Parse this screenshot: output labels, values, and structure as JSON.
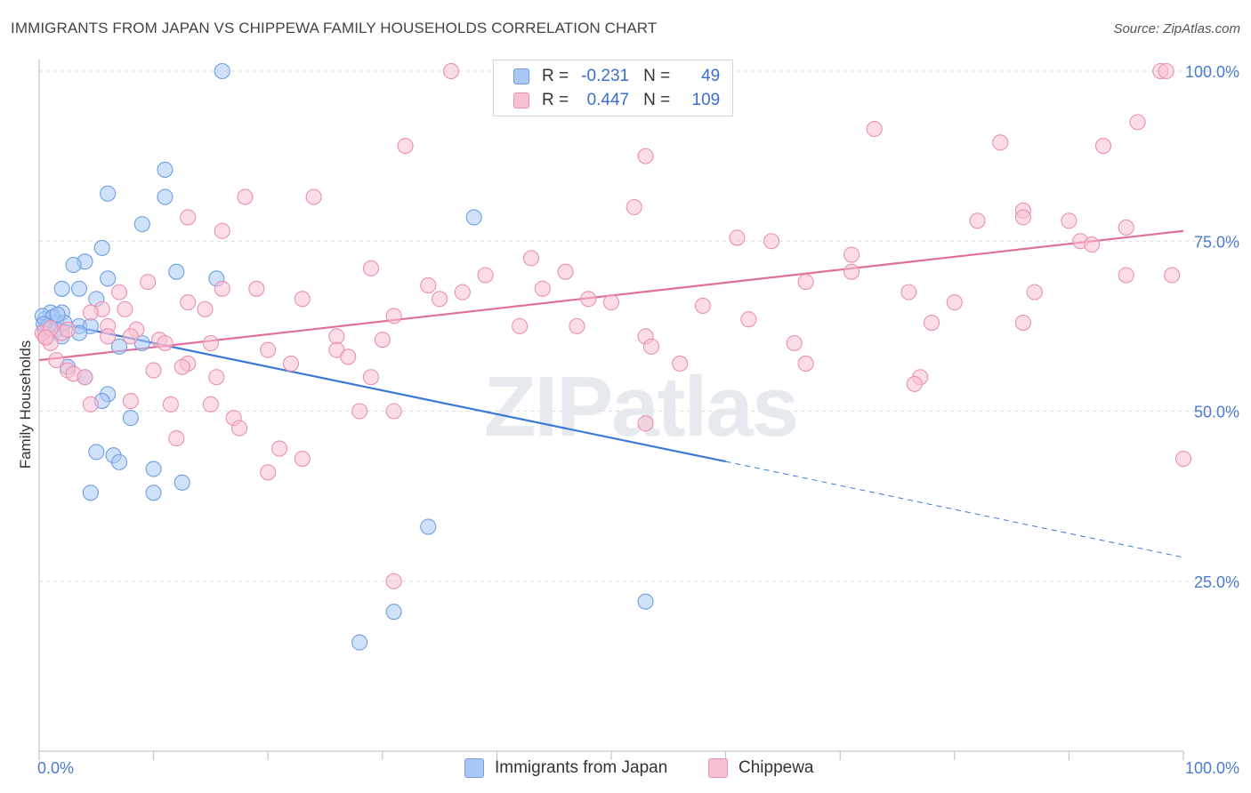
{
  "title": "IMMIGRANTS FROM JAPAN VS CHIPPEWA FAMILY HOUSEHOLDS CORRELATION CHART",
  "source": "Source: ZipAtlas.com",
  "watermark": "ZIPatlas",
  "legend": {
    "rows": [
      {
        "r_label": "R =",
        "r_value": "-0.231",
        "n_label": "N =",
        "n_value": "49",
        "color": "#a9c8f5",
        "border": "#6f9fe0"
      },
      {
        "r_label": "R =",
        "r_value": "0.447",
        "n_label": "N =",
        "n_value": "109",
        "color": "#f9c0d3",
        "border": "#e891ae"
      }
    ]
  },
  "bottom_legend": [
    {
      "label": "Immigrants from Japan",
      "color": "#a9c8f5",
      "border": "#6f9fe0"
    },
    {
      "label": "Chippewa",
      "color": "#f9c0d3",
      "border": "#e891ae"
    }
  ],
  "chart_data": {
    "type": "scatter",
    "title": "IMMIGRANTS FROM JAPAN VS CHIPPEWA FAMILY HOUSEHOLDS CORRELATION CHART",
    "xlabel": "",
    "ylabel": "Family Households",
    "xlim": [
      0,
      100
    ],
    "ylim": [
      0,
      105
    ],
    "x_tick_labels": [
      "0.0%",
      "100.0%"
    ],
    "y_ticks": [
      25,
      50,
      75,
      100
    ],
    "y_tick_labels": [
      "25.0%",
      "50.0%",
      "75.0%",
      "100.0%"
    ],
    "grid": true,
    "series": [
      {
        "name": "Immigrants from Japan",
        "color": "#6f9fe0",
        "fill": "#a9c8f5",
        "line_color": "#3a78d8",
        "trend": {
          "x0": 0,
          "y0": 63.5,
          "x1": 60,
          "y1": 42.6,
          "dash_to_x": 100,
          "dash_to_y": 28.5
        },
        "points": [
          [
            16,
            100
          ],
          [
            11,
            85.5
          ],
          [
            6,
            82
          ],
          [
            11,
            81.5
          ],
          [
            38,
            78.5
          ],
          [
            9,
            77.5
          ],
          [
            5.5,
            74
          ],
          [
            12,
            70.5
          ],
          [
            4,
            72
          ],
          [
            3,
            71.5
          ],
          [
            6,
            69.5
          ],
          [
            15.5,
            69.5
          ],
          [
            2,
            68
          ],
          [
            3.5,
            68
          ],
          [
            5,
            66.5
          ],
          [
            1,
            64.5
          ],
          [
            2,
            64.5
          ],
          [
            0.5,
            63.5
          ],
          [
            1.5,
            63
          ],
          [
            3.5,
            62.5
          ],
          [
            4.5,
            62.5
          ],
          [
            0.5,
            62
          ],
          [
            1.5,
            62
          ],
          [
            3.5,
            61.5
          ],
          [
            2,
            61
          ],
          [
            9,
            60
          ],
          [
            7,
            59.5
          ],
          [
            2.5,
            56.5
          ],
          [
            4,
            55
          ],
          [
            6,
            52.5
          ],
          [
            5.5,
            51.5
          ],
          [
            8,
            49
          ],
          [
            5,
            44
          ],
          [
            6.5,
            43.5
          ],
          [
            7,
            42.5
          ],
          [
            10,
            41.5
          ],
          [
            12.5,
            39.5
          ],
          [
            10,
            38
          ],
          [
            4.5,
            38
          ],
          [
            34,
            33
          ],
          [
            53,
            22
          ],
          [
            31,
            20.5
          ],
          [
            28,
            16
          ],
          [
            0.3,
            64
          ],
          [
            1.2,
            63.8
          ],
          [
            0.8,
            62.5
          ],
          [
            2.2,
            63
          ],
          [
            1.6,
            64.2
          ],
          [
            0.4,
            62.8
          ]
        ]
      },
      {
        "name": "Chippewa",
        "color": "#e891ae",
        "fill": "#f9c0d3",
        "line_color": "#e07098",
        "trend": {
          "x0": 0,
          "y0": 57.5,
          "x1": 100,
          "y1": 76.5
        },
        "points": [
          [
            36,
            100
          ],
          [
            98,
            100
          ],
          [
            98.5,
            100
          ],
          [
            96,
            92.5
          ],
          [
            73,
            91.5
          ],
          [
            84,
            89.5
          ],
          [
            93,
            89
          ],
          [
            32,
            89
          ],
          [
            53,
            87.5
          ],
          [
            18,
            81.5
          ],
          [
            24,
            81.5
          ],
          [
            52,
            80
          ],
          [
            13,
            78.5
          ],
          [
            86,
            79.5
          ],
          [
            82,
            78
          ],
          [
            86,
            78.5
          ],
          [
            90,
            78
          ],
          [
            95,
            77
          ],
          [
            16,
            76.5
          ],
          [
            61,
            75.5
          ],
          [
            64,
            75
          ],
          [
            91,
            75
          ],
          [
            92,
            74.5
          ],
          [
            71,
            73
          ],
          [
            43,
            72.5
          ],
          [
            29,
            71
          ],
          [
            46,
            70.5
          ],
          [
            71,
            70.5
          ],
          [
            95,
            70
          ],
          [
            99,
            70
          ],
          [
            39,
            70
          ],
          [
            67,
            69
          ],
          [
            34,
            68.5
          ],
          [
            9.5,
            69
          ],
          [
            19,
            68
          ],
          [
            16,
            68
          ],
          [
            44,
            68
          ],
          [
            37,
            67.5
          ],
          [
            76,
            67.5
          ],
          [
            87,
            67.5
          ],
          [
            7,
            67.5
          ],
          [
            23,
            66.5
          ],
          [
            35,
            66.5
          ],
          [
            48,
            66.5
          ],
          [
            13,
            66
          ],
          [
            80,
            66
          ],
          [
            50,
            66
          ],
          [
            14.5,
            65
          ],
          [
            58,
            65.5
          ],
          [
            5.5,
            65
          ],
          [
            7.5,
            65
          ],
          [
            4.5,
            64.5
          ],
          [
            31,
            64
          ],
          [
            62,
            63.5
          ],
          [
            78,
            63
          ],
          [
            86,
            63
          ],
          [
            6,
            62.5
          ],
          [
            42,
            62.5
          ],
          [
            47,
            62.5
          ],
          [
            8.5,
            62
          ],
          [
            2,
            61.5
          ],
          [
            0.5,
            61
          ],
          [
            6,
            61
          ],
          [
            8,
            61
          ],
          [
            26,
            61
          ],
          [
            30,
            60.5
          ],
          [
            53,
            61
          ],
          [
            10.5,
            60.5
          ],
          [
            11,
            60
          ],
          [
            15,
            60
          ],
          [
            66,
            60
          ],
          [
            53.5,
            59.5
          ],
          [
            26,
            59
          ],
          [
            20,
            59
          ],
          [
            27,
            58
          ],
          [
            1.5,
            57.5
          ],
          [
            2.5,
            56
          ],
          [
            3,
            55.5
          ],
          [
            13,
            57
          ],
          [
            10,
            56
          ],
          [
            22,
            57
          ],
          [
            4,
            55
          ],
          [
            12.5,
            56.5
          ],
          [
            15.5,
            55
          ],
          [
            29,
            55
          ],
          [
            56,
            57
          ],
          [
            67,
            57
          ],
          [
            77,
            55
          ],
          [
            76.5,
            54
          ],
          [
            1,
            60
          ],
          [
            8,
            51.5
          ],
          [
            11.5,
            51
          ],
          [
            4.5,
            51
          ],
          [
            15,
            51
          ],
          [
            17,
            49
          ],
          [
            28,
            50
          ],
          [
            31,
            50
          ],
          [
            17.5,
            47.5
          ],
          [
            53,
            48.2
          ],
          [
            12,
            46
          ],
          [
            21,
            44.5
          ],
          [
            23,
            43
          ],
          [
            20,
            41
          ],
          [
            100,
            43
          ],
          [
            31,
            25
          ],
          [
            0.3,
            61.5
          ],
          [
            1,
            62.2
          ],
          [
            0.6,
            60.8
          ],
          [
            2.5,
            62
          ]
        ]
      }
    ]
  }
}
